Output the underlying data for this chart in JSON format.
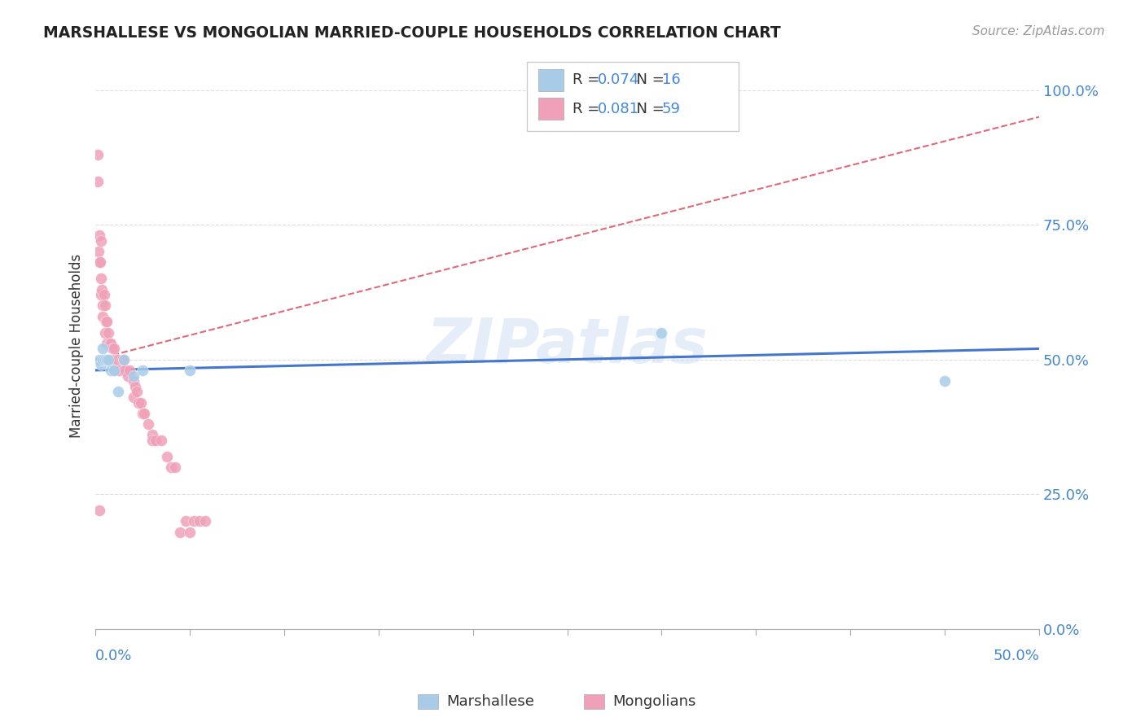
{
  "title": "MARSHALLESE VS MONGOLIAN MARRIED-COUPLE HOUSEHOLDS CORRELATION CHART",
  "source": "Source: ZipAtlas.com",
  "ylabel": "Married-couple Households",
  "watermark": "ZIPatlas",
  "xmin": 0.0,
  "xmax": 50.0,
  "ymin": 0.0,
  "ymax": 105.0,
  "yticks": [
    0.0,
    25.0,
    50.0,
    75.0,
    100.0
  ],
  "ytick_labels": [
    "0.0%",
    "25.0%",
    "50.0%",
    "75.0%",
    "100.0%"
  ],
  "marshallese_R": "0.074",
  "marshallese_N": "16",
  "mongolian_R": "0.081",
  "mongolian_N": "59",
  "marshallese_color": "#a8cce8",
  "mongolian_color": "#f0a0b8",
  "marshallese_line_color": "#4477cc",
  "mongolian_line_color": "#e06878",
  "background_color": "#ffffff",
  "grid_color": "#dddddd",
  "tick_color": "#4488cc",
  "title_color": "#222222",
  "marshallese_x": [
    0.2,
    0.3,
    0.4,
    0.4,
    0.5,
    0.6,
    0.7,
    0.8,
    1.0,
    1.2,
    1.5,
    2.0,
    2.5,
    5.0,
    30.0,
    45.0
  ],
  "marshallese_y": [
    50.0,
    49.0,
    52.0,
    50.0,
    50.0,
    50.0,
    50.0,
    48.0,
    48.0,
    44.0,
    50.0,
    47.0,
    48.0,
    48.0,
    55.0,
    46.0
  ],
  "mongolian_x": [
    0.1,
    0.1,
    0.15,
    0.2,
    0.2,
    0.25,
    0.3,
    0.3,
    0.3,
    0.35,
    0.4,
    0.4,
    0.45,
    0.5,
    0.5,
    0.55,
    0.6,
    0.6,
    0.7,
    0.75,
    0.8,
    0.8,
    0.9,
    0.9,
    1.0,
    1.0,
    1.0,
    1.1,
    1.2,
    1.2,
    1.3,
    1.4,
    1.5,
    1.5,
    1.6,
    1.7,
    1.8,
    2.0,
    2.0,
    2.1,
    2.2,
    2.3,
    2.4,
    2.5,
    2.6,
    2.8,
    3.0,
    3.0,
    3.2,
    3.5,
    3.8,
    4.0,
    4.2,
    4.5,
    4.8,
    5.0,
    5.2,
    5.5,
    5.8
  ],
  "mongolian_y": [
    88.0,
    83.0,
    70.0,
    73.0,
    68.0,
    68.0,
    65.0,
    62.0,
    72.0,
    63.0,
    60.0,
    58.0,
    62.0,
    60.0,
    55.0,
    57.0,
    53.0,
    57.0,
    55.0,
    53.0,
    50.0,
    53.0,
    50.0,
    52.0,
    50.0,
    48.0,
    52.0,
    50.0,
    48.0,
    50.0,
    48.0,
    50.0,
    48.0,
    50.0,
    48.0,
    47.0,
    48.0,
    43.0,
    46.0,
    45.0,
    44.0,
    42.0,
    42.0,
    40.0,
    40.0,
    38.0,
    36.0,
    35.0,
    35.0,
    35.0,
    32.0,
    30.0,
    30.0,
    18.0,
    20.0,
    18.0,
    20.0,
    20.0,
    20.0
  ],
  "mongolian_dot_outlier_x": [
    0.1
  ],
  "mongolian_dot_outlier_y": [
    22.0
  ]
}
